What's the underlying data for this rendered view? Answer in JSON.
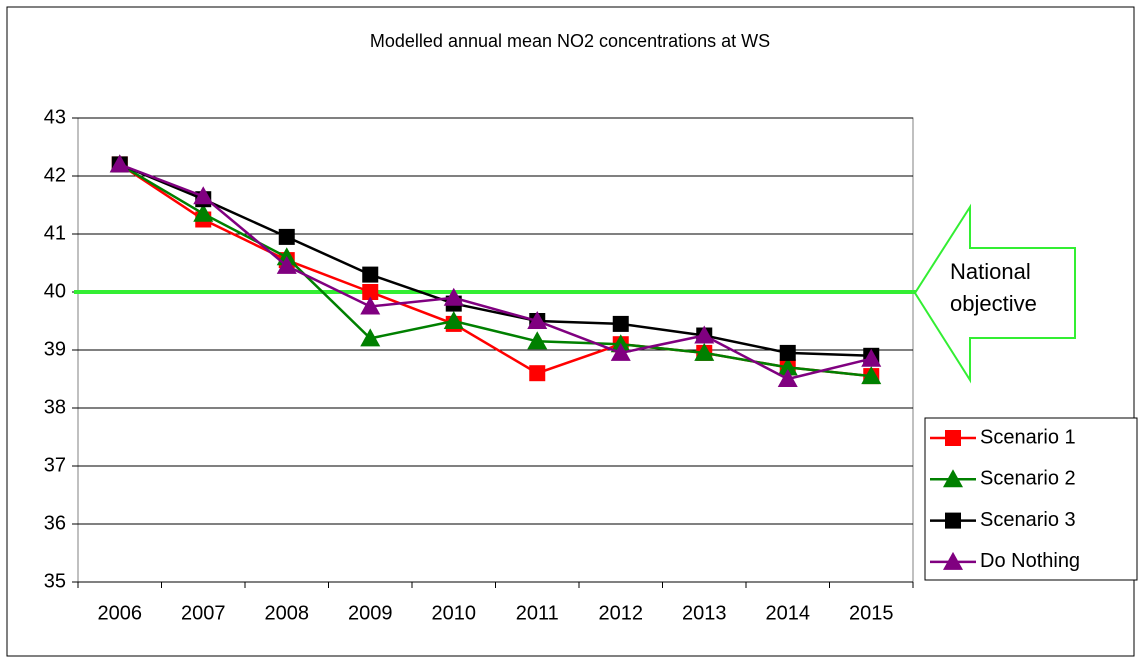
{
  "chart_data": {
    "type": "line",
    "title": "Modelled annual mean NO2 concentrations at WS",
    "categories": [
      "2006",
      "2007",
      "2008",
      "2009",
      "2010",
      "2011",
      "2012",
      "2013",
      "2014",
      "2015"
    ],
    "series": [
      {
        "name": "Scenario 1",
        "color": "#ff0000",
        "marker": "square",
        "values": [
          42.2,
          41.25,
          40.55,
          40.0,
          39.45,
          38.6,
          39.1,
          38.95,
          38.7,
          38.55
        ]
      },
      {
        "name": "Scenario 2",
        "color": "#008000",
        "marker": "triangle",
        "values": [
          42.2,
          41.35,
          40.6,
          39.2,
          39.5,
          39.15,
          39.1,
          38.95,
          38.7,
          38.55
        ]
      },
      {
        "name": "Scenario 3",
        "color": "#000000",
        "marker": "square",
        "values": [
          42.2,
          41.6,
          40.95,
          40.3,
          39.8,
          39.5,
          39.45,
          39.25,
          38.95,
          38.9
        ]
      },
      {
        "name": "Do Nothing",
        "color": "#800080",
        "marker": "triangle",
        "values": [
          42.2,
          41.65,
          40.45,
          39.75,
          39.9,
          39.5,
          38.95,
          39.25,
          38.5,
          38.85
        ]
      }
    ],
    "ylim": [
      35,
      43
    ],
    "yticks": [
      35,
      36,
      37,
      38,
      39,
      40,
      41,
      42,
      43
    ],
    "grid": true,
    "reference_line": {
      "value": 40,
      "label": "National objective",
      "color": "#33ee33"
    },
    "legend": "right"
  }
}
